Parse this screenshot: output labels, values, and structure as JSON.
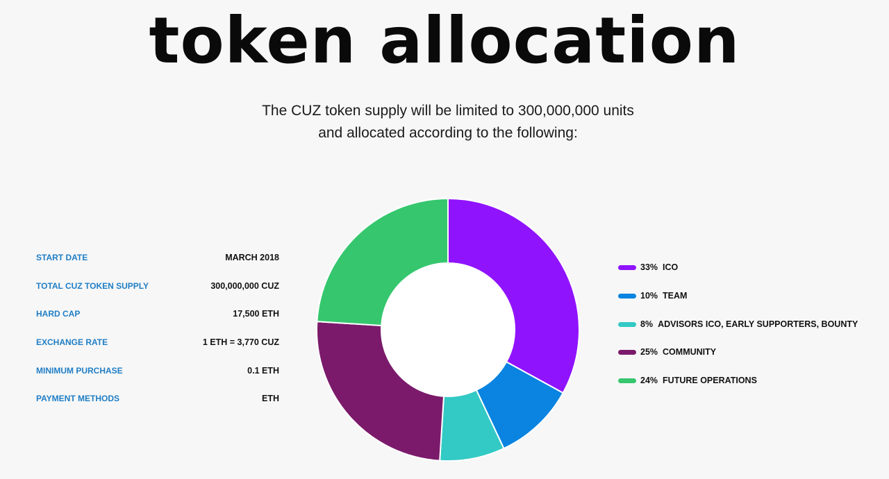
{
  "header": {
    "title": "token allocation",
    "subtitle_line1": "The CUZ token supply will be limited to 300,000,000 units",
    "subtitle_line2": "and allocated according to the following:"
  },
  "info": [
    {
      "label": "START DATE",
      "value": "MARCH 2018"
    },
    {
      "label": "TOTAL CUZ TOKEN SUPPLY",
      "value": "300,000,000 CUZ"
    },
    {
      "label": "HARD CAP",
      "value": "17,500 ETH"
    },
    {
      "label": "EXCHANGE RATE",
      "value": "1 ETH = 3,770 CUZ"
    },
    {
      "label": "MINIMUM PURCHASE",
      "value": "0.1 ETH"
    },
    {
      "label": "PAYMENT METHODS",
      "value": "ETH"
    }
  ],
  "chart_data": {
    "type": "pie",
    "donut": true,
    "slices": [
      {
        "label": "ICO",
        "value": 33,
        "percent_label": "33%",
        "color": "#9013fe"
      },
      {
        "label": "TEAM",
        "value": 10,
        "percent_label": "10%",
        "color": "#0a84e0"
      },
      {
        "label": "ADVISORS ICO, EARLY SUPPORTERS, BOUNTY",
        "value": 8,
        "percent_label": "8%",
        "color": "#33c9c4"
      },
      {
        "label": "COMMUNITY",
        "value": 25,
        "percent_label": "25%",
        "color": "#7b1a6b"
      },
      {
        "label": "FUTURE OPERATIONS",
        "value": 24,
        "percent_label": "24%",
        "color": "#36c76e"
      }
    ],
    "legend_position": "right"
  }
}
